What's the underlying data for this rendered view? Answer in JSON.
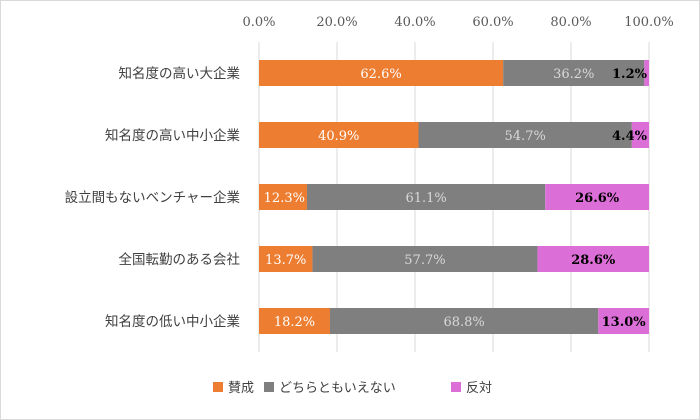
{
  "chart_data": {
    "type": "bar",
    "orientation": "horizontal",
    "stacked": true,
    "x_tick_labels": [
      "0.0%",
      "20.0%",
      "40.0%",
      "60.0%",
      "80.0%",
      "100.0%"
    ],
    "xlim": [
      0,
      100
    ],
    "grid": true,
    "legend_position": "bottom",
    "categories": [
      "知名度の高い大企業",
      "知名度の高い中小企業",
      "設立間もないベンチャー企業",
      "全国転勤のある会社",
      "知名度の低い中小企業"
    ],
    "series": [
      {
        "name": "賛成",
        "color": "#ed7d31",
        "label_color": "#ffffff",
        "label_bold": false,
        "values": [
          62.6,
          40.9,
          12.3,
          13.7,
          18.2
        ],
        "labels": [
          "62.6%",
          "40.9%",
          "12.3%",
          "13.7%",
          "18.2%"
        ]
      },
      {
        "name": "どちらともいえない",
        "color": "#7f7f7f",
        "label_color": "#d9d9d9",
        "label_bold": false,
        "values": [
          36.2,
          54.7,
          61.1,
          57.7,
          68.8
        ],
        "labels": [
          "36.2%",
          "54.7%",
          "61.1%",
          "57.7%",
          "68.8%"
        ]
      },
      {
        "name": "反対",
        "color": "#dc6ed8",
        "label_color": "#000000",
        "label_bold": true,
        "values": [
          1.2,
          4.4,
          26.6,
          28.6,
          13.0
        ],
        "labels": [
          "1.2%",
          "4.4%",
          "26.6%",
          "28.6%",
          "13.0%"
        ]
      }
    ]
  }
}
